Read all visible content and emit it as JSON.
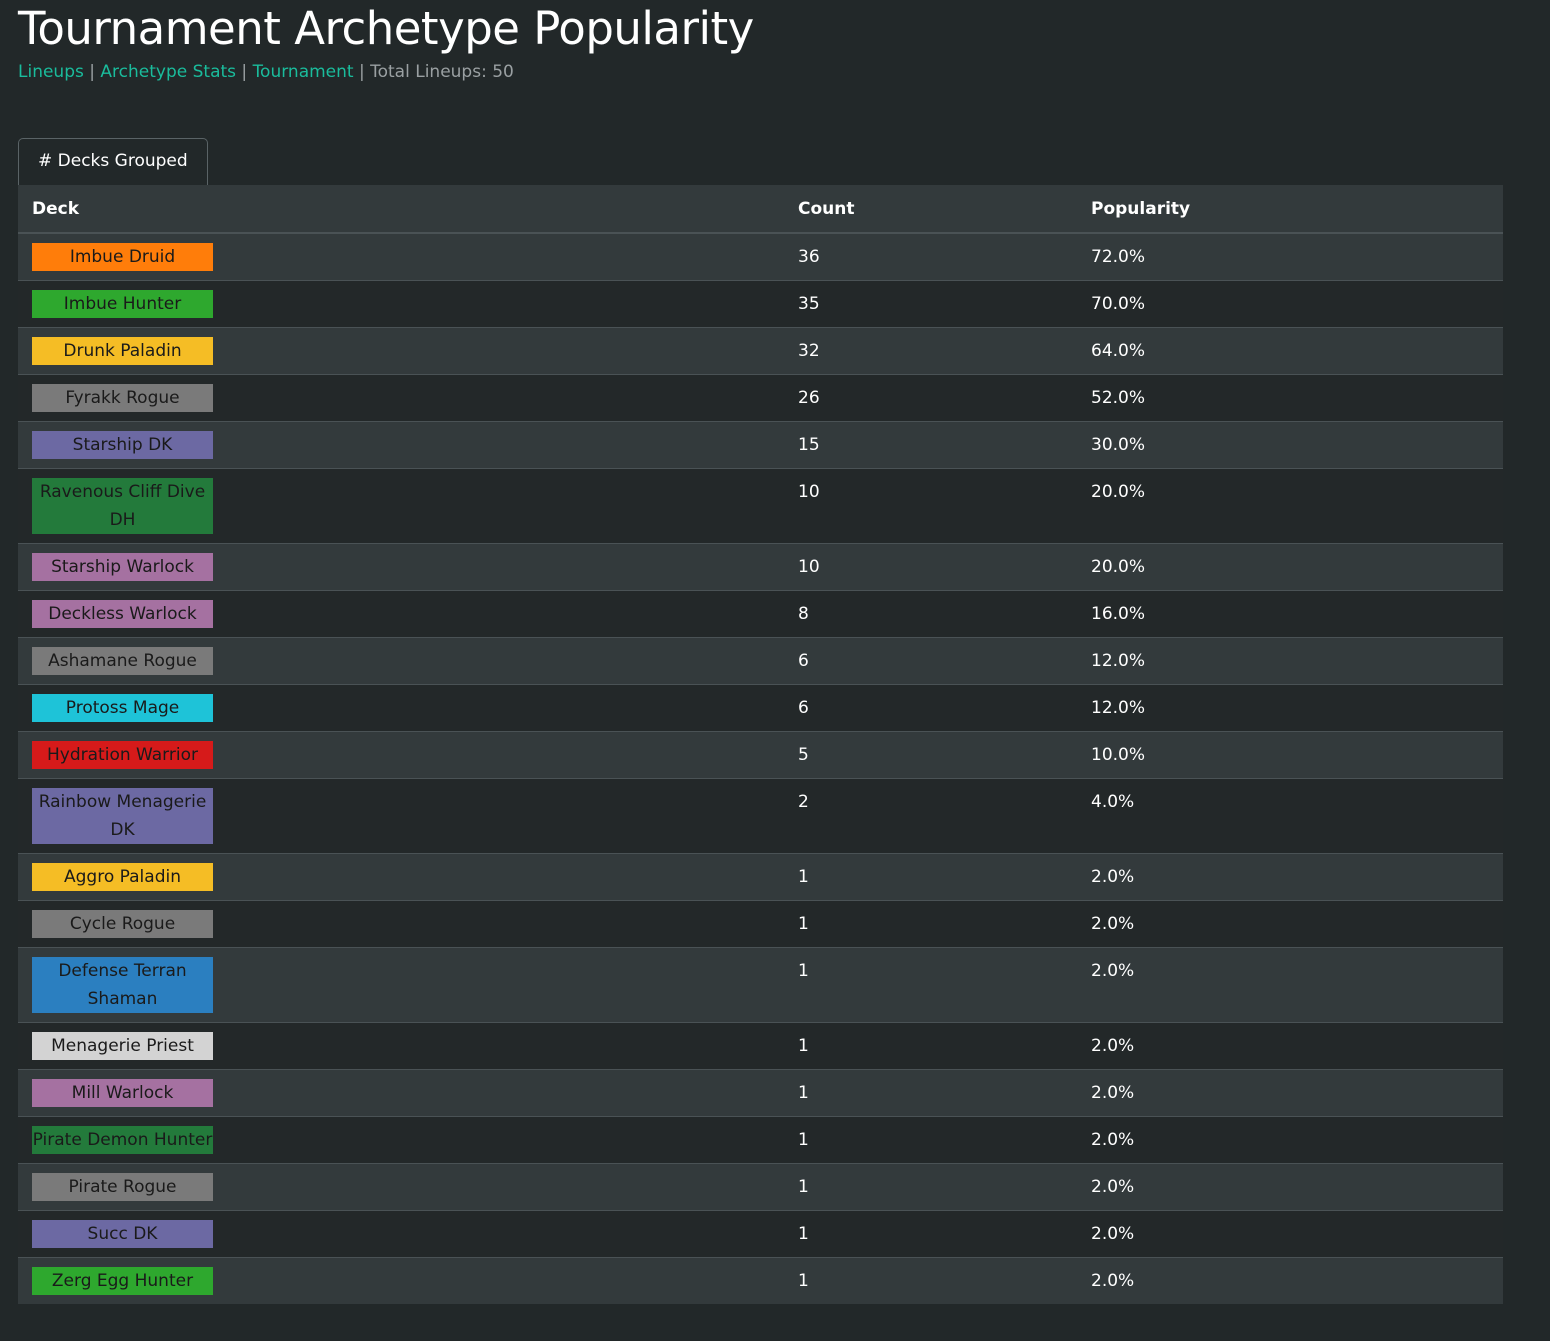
{
  "page": {
    "title": "Tournament Archetype Popularity",
    "nav": {
      "lineups": "Lineups",
      "archetype_stats": "Archetype Stats",
      "tournament": "Tournament",
      "separator": "|",
      "total_lineups": "Total Lineups: 50"
    },
    "tab": "# Decks Grouped"
  },
  "table": {
    "headers": {
      "deck": "Deck",
      "count": "Count",
      "popularity": "Popularity"
    },
    "rows": [
      {
        "deck": "Imbue Druid",
        "count": "36",
        "popularity": "72.0%",
        "color": "#ff7d0a",
        "text_color": "#1a1a1a"
      },
      {
        "deck": "Imbue Hunter",
        "count": "35",
        "popularity": "70.0%",
        "color": "#2ea82e",
        "text_color": "#1a1a1a"
      },
      {
        "deck": "Drunk Paladin",
        "count": "32",
        "popularity": "64.0%",
        "color": "#f5bd25",
        "text_color": "#1a1a1a"
      },
      {
        "deck": "Fyrakk Rogue",
        "count": "26",
        "popularity": "52.0%",
        "color": "#7a7a7a",
        "text_color": "#1a1a1a"
      },
      {
        "deck": "Starship DK",
        "count": "15",
        "popularity": "30.0%",
        "color": "#6c69a3",
        "text_color": "#1a1a1a"
      },
      {
        "deck": "Ravenous Cliff Dive DH",
        "count": "10",
        "popularity": "20.0%",
        "color": "#237a3b",
        "text_color": "#1a1a1a"
      },
      {
        "deck": "Starship Warlock",
        "count": "10",
        "popularity": "20.0%",
        "color": "#a571a1",
        "text_color": "#1a1a1a"
      },
      {
        "deck": "Deckless Warlock",
        "count": "8",
        "popularity": "16.0%",
        "color": "#a571a1",
        "text_color": "#1a1a1a"
      },
      {
        "deck": "Ashamane Rogue",
        "count": "6",
        "popularity": "12.0%",
        "color": "#7a7a7a",
        "text_color": "#1a1a1a"
      },
      {
        "deck": "Protoss Mage",
        "count": "6",
        "popularity": "12.0%",
        "color": "#1ec3d8",
        "text_color": "#1a1a1a"
      },
      {
        "deck": "Hydration Warrior",
        "count": "5",
        "popularity": "10.0%",
        "color": "#d61a1a",
        "text_color": "#1a1a1a"
      },
      {
        "deck": "Rainbow Menagerie DK",
        "count": "2",
        "popularity": "4.0%",
        "color": "#6c69a3",
        "text_color": "#1a1a1a"
      },
      {
        "deck": "Aggro Paladin",
        "count": "1",
        "popularity": "2.0%",
        "color": "#f5bd25",
        "text_color": "#1a1a1a"
      },
      {
        "deck": "Cycle Rogue",
        "count": "1",
        "popularity": "2.0%",
        "color": "#7a7a7a",
        "text_color": "#1a1a1a"
      },
      {
        "deck": "Defense Terran Shaman",
        "count": "1",
        "popularity": "2.0%",
        "color": "#2b7fc0",
        "text_color": "#1a1a1a"
      },
      {
        "deck": "Menagerie Priest",
        "count": "1",
        "popularity": "2.0%",
        "color": "#d3d3d3",
        "text_color": "#1a1a1a"
      },
      {
        "deck": "Mill Warlock",
        "count": "1",
        "popularity": "2.0%",
        "color": "#a571a1",
        "text_color": "#1a1a1a"
      },
      {
        "deck": "Pirate Demon Hunter",
        "count": "1",
        "popularity": "2.0%",
        "color": "#237a3b",
        "text_color": "#1a1a1a"
      },
      {
        "deck": "Pirate Rogue",
        "count": "1",
        "popularity": "2.0%",
        "color": "#7a7a7a",
        "text_color": "#1a1a1a"
      },
      {
        "deck": "Succ DK",
        "count": "1",
        "popularity": "2.0%",
        "color": "#6c69a3",
        "text_color": "#1a1a1a"
      },
      {
        "deck": "Zerg Egg Hunter",
        "count": "1",
        "popularity": "2.0%",
        "color": "#2ea82e",
        "text_color": "#1a1a1a"
      }
    ]
  }
}
